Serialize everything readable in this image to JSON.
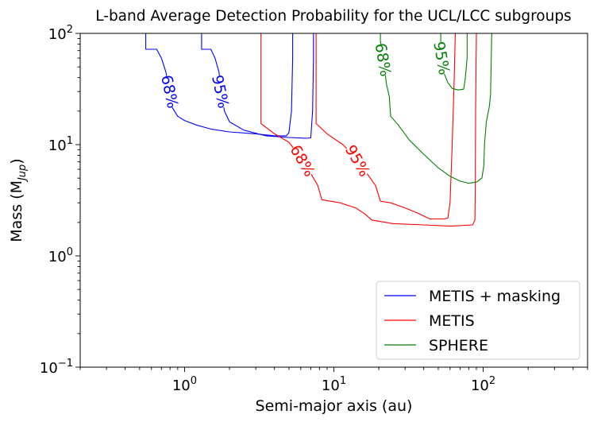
{
  "chart_data": {
    "type": "line",
    "title": "L-band Average Detection Probability for the UCL/LCC subgroups",
    "xlabel": "Semi-major axis (au)",
    "ylabel_main": "Mass (M",
    "ylabel_sub": "Jup",
    "ylabel_close": ")",
    "xscale": "log",
    "yscale": "log",
    "xlim": [
      0.2,
      500
    ],
    "ylim": [
      0.1,
      100
    ],
    "xticks": [
      {
        "value": 1,
        "base": "10",
        "exp": "0"
      },
      {
        "value": 10,
        "base": "10",
        "exp": "1"
      },
      {
        "value": 100,
        "base": "10",
        "exp": "2"
      }
    ],
    "yticks": [
      {
        "value": 0.1,
        "base": "10",
        "exp": "−1"
      },
      {
        "value": 1,
        "base": "10",
        "exp": "0"
      },
      {
        "value": 10,
        "base": "10",
        "exp": "1"
      },
      {
        "value": 100,
        "base": "10",
        "exp": "2"
      }
    ],
    "legend_position": "lower-right",
    "series": [
      {
        "name": "METIS + masking",
        "color": "#0000ff",
        "contours": [
          {
            "level": "68%",
            "label_at": [
              0.8,
              30
            ],
            "label_rot": 78,
            "points": [
              [
                0.55,
                100
              ],
              [
                0.55,
                72
              ],
              [
                0.65,
                72
              ],
              [
                0.7,
                60
              ],
              [
                0.75,
                45
              ],
              [
                0.8,
                30
              ],
              [
                0.82,
                22
              ],
              [
                0.9,
                18
              ],
              [
                1.0,
                16.5
              ],
              [
                1.2,
                15
              ],
              [
                1.5,
                13.8
              ],
              [
                2.0,
                13
              ],
              [
                3.0,
                12.5
              ],
              [
                4.0,
                12
              ],
              [
                4.8,
                12
              ],
              [
                5.0,
                12.8
              ],
              [
                5.2,
                20
              ],
              [
                5.3,
                60
              ],
              [
                5.3,
                100
              ]
            ]
          },
          {
            "level": "95%",
            "label_at": [
              1.75,
              30
            ],
            "label_rot": 78,
            "points": [
              [
                1.3,
                100
              ],
              [
                1.3,
                72
              ],
              [
                1.5,
                72
              ],
              [
                1.6,
                60
              ],
              [
                1.7,
                45
              ],
              [
                1.75,
                30
              ],
              [
                1.85,
                20
              ],
              [
                2.0,
                16
              ],
              [
                2.5,
                13.5
              ],
              [
                3.5,
                12
              ],
              [
                5.0,
                11.6
              ],
              [
                6.5,
                11.4
              ],
              [
                7.0,
                11.5
              ],
              [
                7.2,
                20
              ],
              [
                7.3,
                60
              ],
              [
                7.3,
                100
              ]
            ]
          }
        ]
      },
      {
        "name": "METIS",
        "color": "#ff0000",
        "contours": [
          {
            "level": "68%",
            "label_at": [
              6.2,
              7.2
            ],
            "label_rot": 60,
            "points": [
              [
                3.25,
                100
              ],
              [
                3.25,
                15.5
              ],
              [
                4.0,
                12.5
              ],
              [
                5.0,
                10.5
              ],
              [
                6.2,
                7.2
              ],
              [
                7.0,
                5.5
              ],
              [
                7.8,
                4.3
              ],
              [
                8.3,
                3.2
              ],
              [
                11,
                3.0
              ],
              [
                14,
                2.7
              ],
              [
                16,
                2.4
              ],
              [
                18,
                2.1
              ],
              [
                25,
                1.95
              ],
              [
                40,
                1.9
              ],
              [
                60,
                1.85
              ],
              [
                85,
                1.9
              ],
              [
                88,
                2.1
              ],
              [
                88.5,
                4
              ],
              [
                89,
                20
              ],
              [
                90,
                100
              ]
            ]
          },
          {
            "level": "95%",
            "label_at": [
              14.5,
              7.2
            ],
            "label_rot": 60,
            "points": [
              [
                7.6,
                100
              ],
              [
                7.6,
                15.5
              ],
              [
                9,
                12.5
              ],
              [
                11.5,
                10
              ],
              [
                14.5,
                7.2
              ],
              [
                17,
                5.3
              ],
              [
                19,
                4.3
              ],
              [
                20.5,
                3.1
              ],
              [
                24,
                3.0
              ],
              [
                30,
                2.7
              ],
              [
                37,
                2.4
              ],
              [
                44,
                2.15
              ],
              [
                55,
                2.15
              ],
              [
                58,
                2.2
              ],
              [
                60,
                3
              ],
              [
                62,
                10
              ],
              [
                64,
                40
              ],
              [
                65,
                100
              ]
            ]
          }
        ]
      },
      {
        "name": "SPHERE",
        "color": "#008000",
        "contours": [
          {
            "level": "68%",
            "label_at": [
              21.5,
              58
            ],
            "label_rot": 80,
            "points": [
              [
                20.5,
                100
              ],
              [
                20.5,
                85
              ],
              [
                21.5,
                58
              ],
              [
                22.5,
                35
              ],
              [
                23.5,
                27
              ],
              [
                24,
                18
              ],
              [
                27,
                15
              ],
              [
                32,
                11
              ],
              [
                40,
                8.2
              ],
              [
                50,
                6.2
              ],
              [
                60,
                5.2
              ],
              [
                70,
                4.7
              ],
              [
                80,
                4.5
              ],
              [
                90,
                4.6
              ],
              [
                98,
                5.0
              ],
              [
                101,
                6.5
              ],
              [
                102,
                10
              ],
              [
                105,
                16
              ],
              [
                110,
                22
              ],
              [
                112,
                28
              ],
              [
                113,
                50
              ],
              [
                114,
                100
              ]
            ]
          },
          {
            "level": "95%",
            "label_at": [
              53,
              60
            ],
            "label_rot": 80,
            "points": [
              [
                52,
                100
              ],
              [
                52,
                82
              ],
              [
                53,
                60
              ],
              [
                55,
                43
              ],
              [
                58,
                36
              ],
              [
                62,
                32
              ],
              [
                68,
                31
              ],
              [
                74,
                31.5
              ],
              [
                76,
                40
              ],
              [
                78,
                60
              ],
              [
                78,
                100
              ]
            ]
          }
        ]
      }
    ]
  }
}
